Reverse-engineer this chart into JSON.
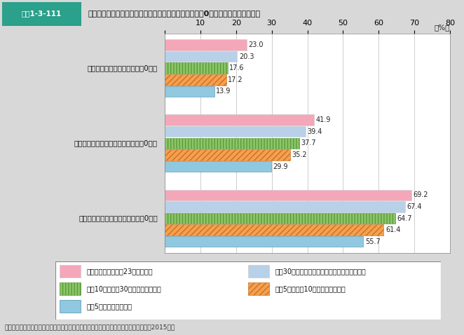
{
  "header_label": "図表1-3-111",
  "header_title": "居住自治体規模別の近所との交際度合い（交際人数が「0人」と答えた人の割合）",
  "source": "資料：厚生労働省政策統括官付政策評価官室委託「人口減少社会に関する意識調査」（2015年）",
  "categories": [
    "挨拶程度の付き合いの人が「0人」",
    "日常的に立ち話をする程度の人が「0人」",
    "生活面で協力しあっている人が「0人」"
  ],
  "series": [
    {
      "name": "政令指定都市（東京23区を含む）",
      "values": [
        23.0,
        41.9,
        69.2
      ],
      "color": "#F4A7B9",
      "hatch": "",
      "edgecolor": "#cccccc"
    },
    {
      "name": "人口30万人以上の自治体（政令指定都市以外）",
      "values": [
        20.3,
        39.4,
        67.4
      ],
      "color": "#B8D0E8",
      "hatch": "",
      "edgecolor": "#cccccc"
    },
    {
      "name": "人口10万人以上30万人未満の自治体",
      "values": [
        17.6,
        37.7,
        64.7
      ],
      "color": "#8DC66A",
      "hatch": "||||",
      "edgecolor": "#5a9a3a"
    },
    {
      "name": "人口5万人以上10万人未満の自治体",
      "values": [
        17.2,
        35.2,
        61.4
      ],
      "color": "#F4A050",
      "hatch": "////",
      "edgecolor": "#cc7020"
    },
    {
      "name": "人口5万人未満の自治体",
      "values": [
        13.9,
        29.9,
        55.7
      ],
      "color": "#90C8E0",
      "hatch": "====",
      "edgecolor": "#5090b0"
    }
  ],
  "xlim": [
    0,
    80
  ],
  "xticks": [
    0,
    10,
    20,
    30,
    40,
    50,
    60,
    70,
    80
  ],
  "xlabel": "（%）",
  "background_color": "#D8D8D8",
  "plot_bg_color": "#FFFFFF",
  "legend_bg_color": "#FFFFFF",
  "header_color": "#2BA08B",
  "header_text_color": "#FFFFFF"
}
